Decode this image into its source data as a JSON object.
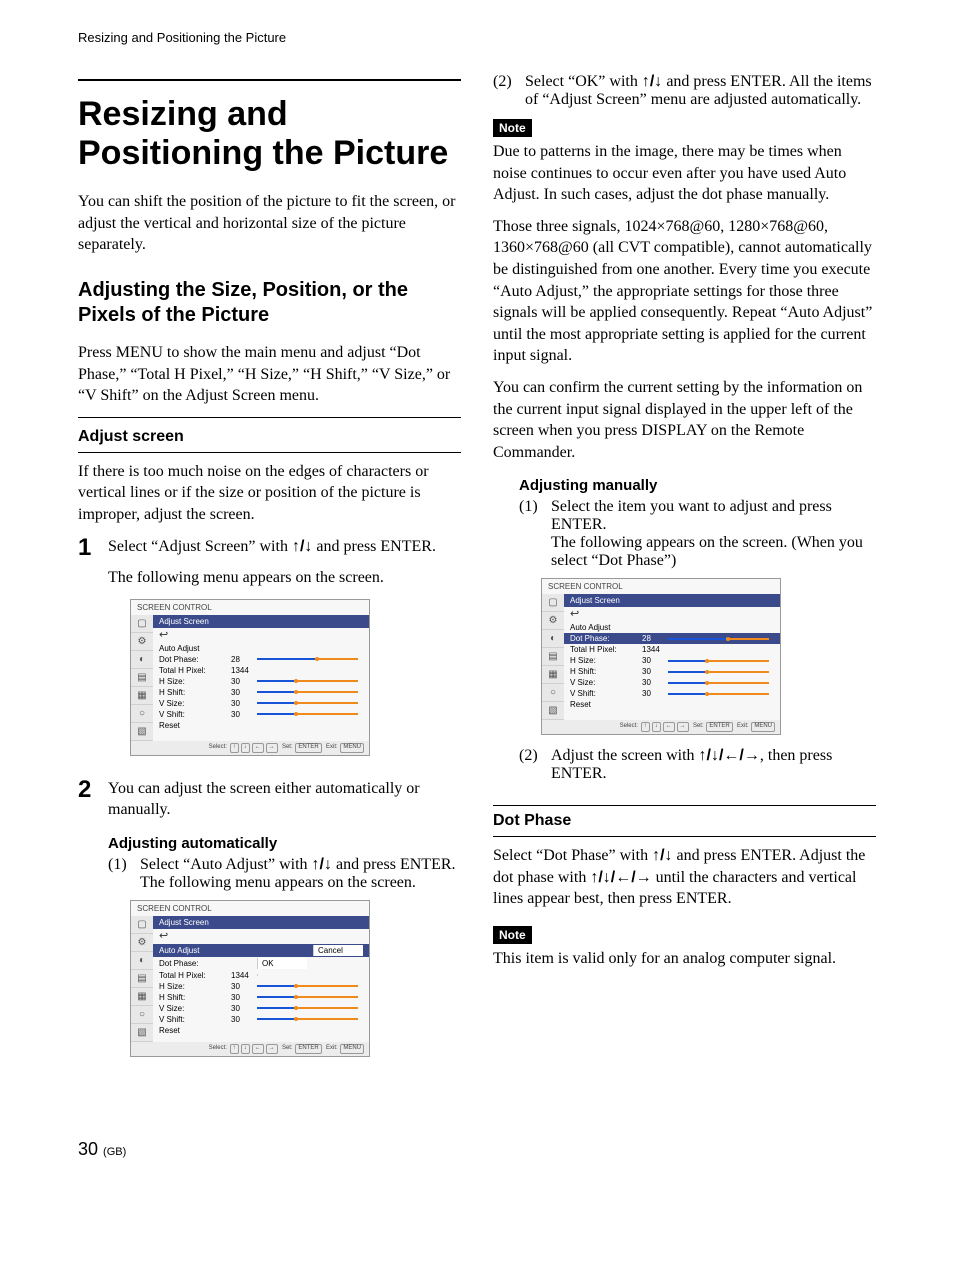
{
  "running_head": "Resizing and Positioning the Picture",
  "title": "Resizing and Positioning the Picture",
  "intro": "You can shift the position of the picture to fit the screen, or adjust the vertical and horizontal size of the picture separately.",
  "section_adjust_title": "Adjusting the Size, Position, or the Pixels of the Picture",
  "section_adjust_intro": "Press MENU to show the main menu and adjust “Dot Phase,” “Total H Pixel,” “H Size,” “H Shift,” “V Size,” or “V Shift” on the Adjust Screen menu.",
  "adjust_screen_heading": "Adjust screen",
  "adjust_screen_intro": "If there is too much noise on the edges of characters or vertical lines or if the size or position of the picture is improper, adjust the screen.",
  "step1_num": "1",
  "step1_a": "Select “Adjust Screen” with ",
  "step1_b": " and press ENTER.",
  "step1_c": "The following menu appears on the screen.",
  "arrows_ud": "↑/↓",
  "arrows_all": "↑/↓/←/→",
  "step2_num": "2",
  "step2_a": "You can adjust the screen either automatically or manually.",
  "auto_heading": "Adjusting automatically",
  "auto_1_num": "(1)",
  "auto_1_a": "Select “Auto Adjust” with ",
  "auto_1_b": " and press ENTER.",
  "auto_1_c": "The following menu appears on the screen.",
  "auto_2_num": "(2)",
  "auto_2_a": "Select “OK” with ",
  "auto_2_b": " and press ENTER. All the items of “Adjust Screen” menu are adjusted automatically.",
  "note_label": "Note",
  "note_auto_p1": "Due to patterns in the image, there may be times when noise continues to occur even after you have used Auto Adjust. In such cases, adjust the dot phase manually.",
  "note_auto_p2": "Those three signals, 1024×768@60, 1280×768@60, 1360×768@60 (all CVT compatible), cannot automatically be distinguished from one another. Every time you execute “Auto Adjust,” the appropriate settings for those three signals will be applied consequently. Repeat “Auto Adjust” until the most appropriate setting is applied for the current input signal.",
  "note_auto_p3": "You can confirm the current setting by the information on the current input signal displayed in the upper left of the screen when you press DISPLAY on the Remote Commander.",
  "manual_heading": "Adjusting manually",
  "manual_1_num": "(1)",
  "manual_1_a": "Select the item you want to adjust and press ENTER.",
  "manual_1_b": "The following appears on the screen. (When you select “Dot Phase”)",
  "manual_2_num": "(2)",
  "manual_2_a": "Adjust the screen with ",
  "manual_2_b": ", then press ENTER.",
  "dot_phase_heading": "Dot Phase",
  "dot_phase_a": "Select “Dot Phase” with ",
  "dot_phase_b": " and press ENTER. Adjust the dot phase with ",
  "dot_phase_c": " until the characters and vertical lines appear best, then press ENTER.",
  "note_dot": "This item is valid only for an analog computer signal.",
  "page_number": "30",
  "page_suffix": "(GB)",
  "osd": {
    "header_bg": "#3a4a8a",
    "header_fg": "#ffffff",
    "slider_blue": "#1854d8",
    "slider_orange": "#f08a1c",
    "knob_orange": "#f08a1c",
    "title": "SCREEN CONTROL",
    "screen_head": "Adjust Screen",
    "back_glyph": "↩",
    "icons": [
      "▢",
      "⚙",
      "◐",
      "▤",
      "▦",
      "○",
      "▧"
    ],
    "rows_common": [
      {
        "label": "Auto Adjust",
        "val": "",
        "slider": false
      },
      {
        "label": "Dot Phase:",
        "val": "28",
        "low": 0.55,
        "high": 0.95,
        "slider": true
      },
      {
        "label": "Total H Pixel:",
        "val": "1344",
        "slider": false
      },
      {
        "label": "H Size:",
        "val": "30",
        "low": 0.35,
        "high": 0.95,
        "slider": true
      },
      {
        "label": "H Shift:",
        "val": "30",
        "low": 0.35,
        "high": 0.95,
        "slider": true
      },
      {
        "label": "V Size:",
        "val": "30",
        "low": 0.35,
        "high": 0.95,
        "slider": true
      },
      {
        "label": "V Shift:",
        "val": "30",
        "low": 0.35,
        "high": 0.95,
        "slider": true
      },
      {
        "label": "Reset",
        "val": "",
        "slider": false
      }
    ],
    "footer_select": "Select:",
    "footer_set": "Set:",
    "footer_exit": "Exit:",
    "footer_enter": "ENTER",
    "footer_menu": "MENU",
    "auto_adjust_label": "Auto Adjust",
    "auto_adjust_side": [
      "Cancel",
      "OK"
    ],
    "auto_rows": [
      {
        "label": "Dot Phase:",
        "val": "",
        "slider": false
      },
      {
        "label": "Total H Pixel:",
        "val": "1344",
        "slider": false
      },
      {
        "label": "H Size:",
        "val": "30",
        "low": 0.35,
        "high": 0.95,
        "slider": true
      },
      {
        "label": "H Shift:",
        "val": "30",
        "low": 0.35,
        "high": 0.95,
        "slider": true
      },
      {
        "label": "V Size:",
        "val": "30",
        "low": 0.35,
        "high": 0.95,
        "slider": true
      },
      {
        "label": "V Shift:",
        "val": "30",
        "low": 0.35,
        "high": 0.95,
        "slider": true
      },
      {
        "label": "Reset",
        "val": "",
        "slider": false
      }
    ],
    "manual_highlight_index": 1,
    "manual_rows": [
      {
        "label": "Auto Adjust",
        "val": "",
        "slider": false
      },
      {
        "label": "Dot Phase:",
        "val": "28",
        "low": 0.55,
        "high": 0.95,
        "slider": true,
        "hl": true
      },
      {
        "label": "Total H Pixel:",
        "val": "1344",
        "slider": false
      },
      {
        "label": "H Size:",
        "val": "30",
        "low": 0.35,
        "high": 0.95,
        "slider": true
      },
      {
        "label": "H Shift:",
        "val": "30",
        "low": 0.35,
        "high": 0.95,
        "slider": true
      },
      {
        "label": "V Size:",
        "val": "30",
        "low": 0.35,
        "high": 0.95,
        "slider": true
      },
      {
        "label": "V Shift:",
        "val": "30",
        "low": 0.35,
        "high": 0.95,
        "slider": true
      },
      {
        "label": "Reset",
        "val": "",
        "slider": false
      }
    ]
  }
}
